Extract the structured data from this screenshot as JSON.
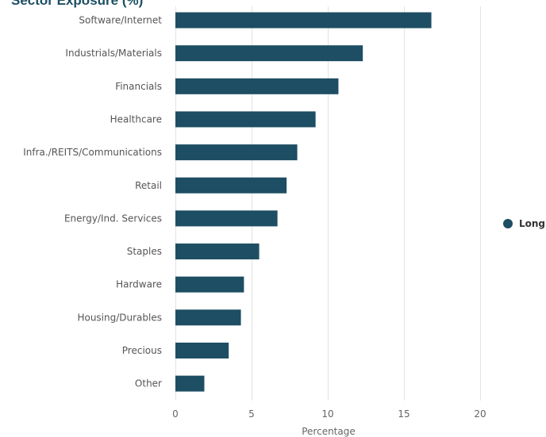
{
  "chart_data": {
    "type": "bar",
    "orientation": "horizontal",
    "title": "Sector Exposure (%)",
    "xlabel": "Percentage",
    "ylabel": "",
    "xlim": [
      0,
      20
    ],
    "x_ticks": [
      0,
      5,
      10,
      15,
      20
    ],
    "grid": true,
    "legend_position": "right",
    "categories": [
      "Software/Internet",
      "Industrials/Materials",
      "Financials",
      "Healthcare",
      "Infra./REITS/Communications",
      "Retail",
      "Energy/Ind. Services",
      "Staples",
      "Hardware",
      "Housing/Durables",
      "Precious",
      "Other"
    ],
    "series": [
      {
        "name": "Long",
        "color": "#1d4e63",
        "values": [
          16.8,
          12.3,
          10.7,
          9.2,
          8.0,
          7.3,
          6.7,
          5.5,
          4.5,
          4.3,
          3.5,
          1.9
        ]
      }
    ]
  }
}
